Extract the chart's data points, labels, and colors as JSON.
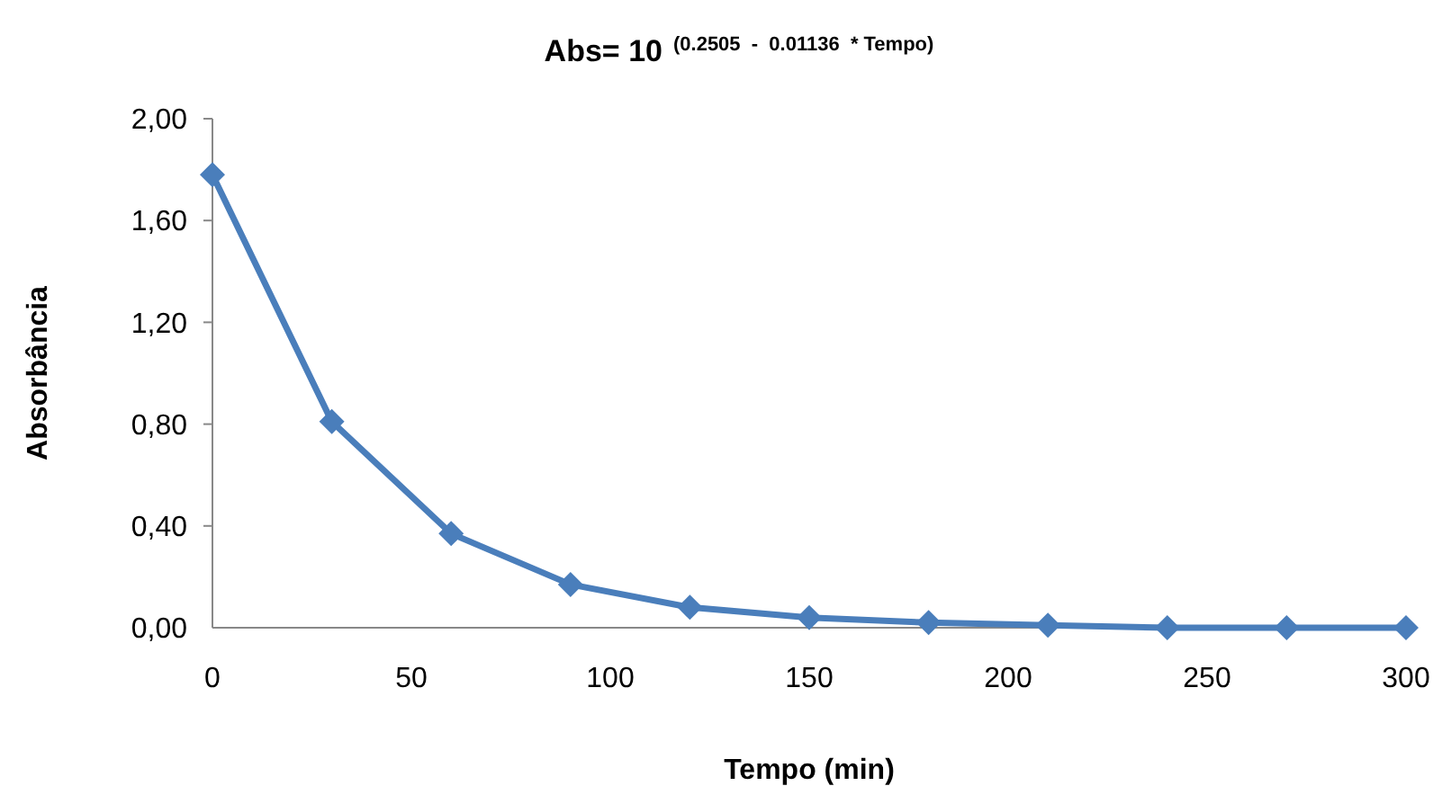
{
  "chart_data": {
    "type": "line",
    "title": "Abs= 10$^{(0.2505  -  0.01136  * Tempo)}$",
    "xlabel": "Tempo (min)",
    "ylabel": "Absorbância",
    "x": [
      0,
      30,
      60,
      90,
      120,
      150,
      180,
      210,
      240,
      270,
      300
    ],
    "series": [
      {
        "color": "#4a7ebb",
        "values": [
          1.78,
          0.81,
          0.37,
          0.17,
          0.08,
          0.04,
          0.02,
          0.01,
          0,
          0,
          0
        ]
      }
    ],
    "xlim": [
      0,
      300
    ],
    "xticks": [
      0,
      50,
      100,
      150,
      200,
      250,
      300
    ],
    "ylim": [
      0,
      2
    ],
    "yticks": [
      {
        "value": 0,
        "label": "0,00"
      },
      {
        "value": 0.4,
        "label": "0,40"
      },
      {
        "value": 0.8,
        "label": "0,80"
      },
      {
        "value": 1.2,
        "label": "1,20"
      },
      {
        "value": 1.6,
        "label": "1,60"
      },
      {
        "value": 2,
        "label": "2,00"
      }
    ],
    "grid": false,
    "marker": "diamond",
    "line_style": "solid"
  }
}
